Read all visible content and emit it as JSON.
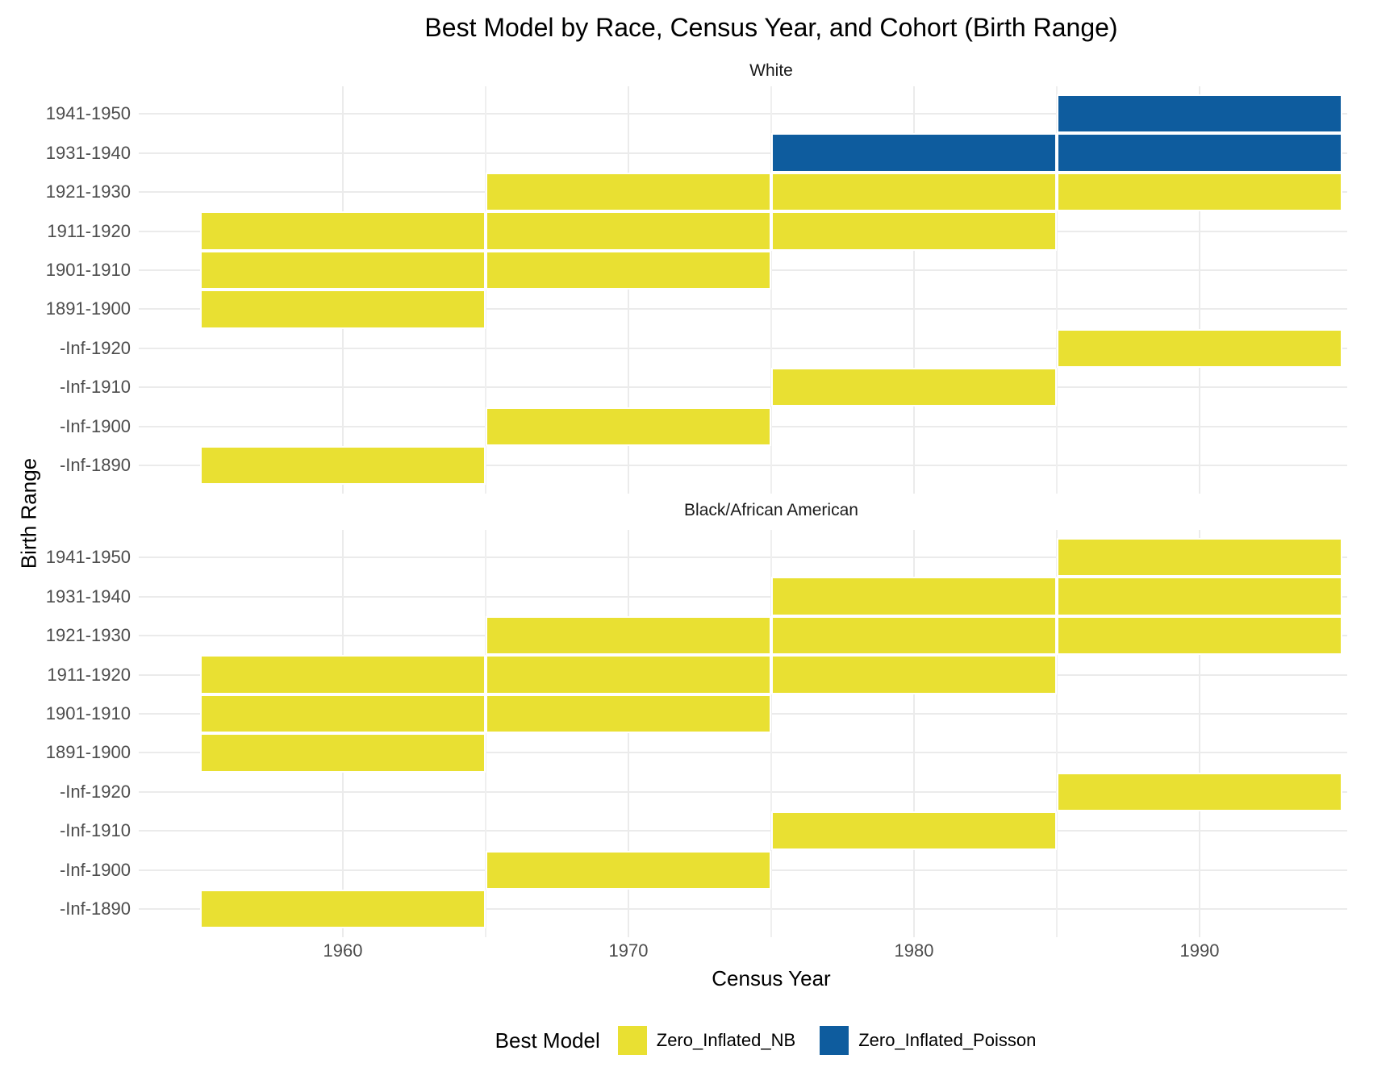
{
  "title": "Best Model by Race, Census Year, and Cohort (Birth Range)",
  "chart_data": {
    "type": "heatmap",
    "title": "Best Model by Race, Census Year, and Cohort (Birth Range)",
    "xlabel": "Census Year",
    "ylabel": "Birth Range",
    "x_range": [
      1955,
      1995
    ],
    "x_ticks": [
      "1960",
      "1970",
      "1980",
      "1990"
    ],
    "tile_width_years": 10,
    "grid": "on",
    "legend_position": "bottom",
    "y_categories": [
      "1941-1950",
      "1931-1940",
      "1921-1930",
      "1911-1920",
      "1901-1910",
      "1891-1900",
      "-Inf-1920",
      "-Inf-1910",
      "-Inf-1900",
      "-Inf-1890"
    ],
    "colors": {
      "Zero_Inflated_NB": "#e9e032",
      "Zero_Inflated_Poisson": "#0e5c9e"
    },
    "legend": {
      "title": "Best Model",
      "entries": [
        {
          "label": "Zero_Inflated_NB",
          "color": "#e9e032"
        },
        {
          "label": "Zero_Inflated_Poisson",
          "color": "#0e5c9e"
        }
      ]
    },
    "facets": [
      {
        "label": "White",
        "tiles": [
          {
            "birth_range": "1941-1950",
            "census_year": 1990,
            "model": "Zero_Inflated_Poisson"
          },
          {
            "birth_range": "1931-1940",
            "census_year": 1980,
            "model": "Zero_Inflated_Poisson"
          },
          {
            "birth_range": "1931-1940",
            "census_year": 1990,
            "model": "Zero_Inflated_Poisson"
          },
          {
            "birth_range": "1921-1930",
            "census_year": 1970,
            "model": "Zero_Inflated_NB"
          },
          {
            "birth_range": "1921-1930",
            "census_year": 1980,
            "model": "Zero_Inflated_NB"
          },
          {
            "birth_range": "1921-1930",
            "census_year": 1990,
            "model": "Zero_Inflated_NB"
          },
          {
            "birth_range": "1911-1920",
            "census_year": 1960,
            "model": "Zero_Inflated_NB"
          },
          {
            "birth_range": "1911-1920",
            "census_year": 1970,
            "model": "Zero_Inflated_NB"
          },
          {
            "birth_range": "1911-1920",
            "census_year": 1980,
            "model": "Zero_Inflated_NB"
          },
          {
            "birth_range": "1901-1910",
            "census_year": 1960,
            "model": "Zero_Inflated_NB"
          },
          {
            "birth_range": "1901-1910",
            "census_year": 1970,
            "model": "Zero_Inflated_NB"
          },
          {
            "birth_range": "1891-1900",
            "census_year": 1960,
            "model": "Zero_Inflated_NB"
          },
          {
            "birth_range": "-Inf-1920",
            "census_year": 1990,
            "model": "Zero_Inflated_NB"
          },
          {
            "birth_range": "-Inf-1910",
            "census_year": 1980,
            "model": "Zero_Inflated_NB"
          },
          {
            "birth_range": "-Inf-1900",
            "census_year": 1970,
            "model": "Zero_Inflated_NB"
          },
          {
            "birth_range": "-Inf-1890",
            "census_year": 1960,
            "model": "Zero_Inflated_NB"
          }
        ]
      },
      {
        "label": "Black/African American",
        "tiles": [
          {
            "birth_range": "1941-1950",
            "census_year": 1990,
            "model": "Zero_Inflated_NB"
          },
          {
            "birth_range": "1931-1940",
            "census_year": 1980,
            "model": "Zero_Inflated_NB"
          },
          {
            "birth_range": "1931-1940",
            "census_year": 1990,
            "model": "Zero_Inflated_NB"
          },
          {
            "birth_range": "1921-1930",
            "census_year": 1970,
            "model": "Zero_Inflated_NB"
          },
          {
            "birth_range": "1921-1930",
            "census_year": 1980,
            "model": "Zero_Inflated_NB"
          },
          {
            "birth_range": "1921-1930",
            "census_year": 1990,
            "model": "Zero_Inflated_NB"
          },
          {
            "birth_range": "1911-1920",
            "census_year": 1960,
            "model": "Zero_Inflated_NB"
          },
          {
            "birth_range": "1911-1920",
            "census_year": 1970,
            "model": "Zero_Inflated_NB"
          },
          {
            "birth_range": "1911-1920",
            "census_year": 1980,
            "model": "Zero_Inflated_NB"
          },
          {
            "birth_range": "1901-1910",
            "census_year": 1960,
            "model": "Zero_Inflated_NB"
          },
          {
            "birth_range": "1901-1910",
            "census_year": 1970,
            "model": "Zero_Inflated_NB"
          },
          {
            "birth_range": "1891-1900",
            "census_year": 1960,
            "model": "Zero_Inflated_NB"
          },
          {
            "birth_range": "-Inf-1920",
            "census_year": 1990,
            "model": "Zero_Inflated_NB"
          },
          {
            "birth_range": "-Inf-1910",
            "census_year": 1980,
            "model": "Zero_Inflated_NB"
          },
          {
            "birth_range": "-Inf-1900",
            "census_year": 1970,
            "model": "Zero_Inflated_NB"
          },
          {
            "birth_range": "-Inf-1890",
            "census_year": 1960,
            "model": "Zero_Inflated_NB"
          }
        ]
      }
    ]
  }
}
